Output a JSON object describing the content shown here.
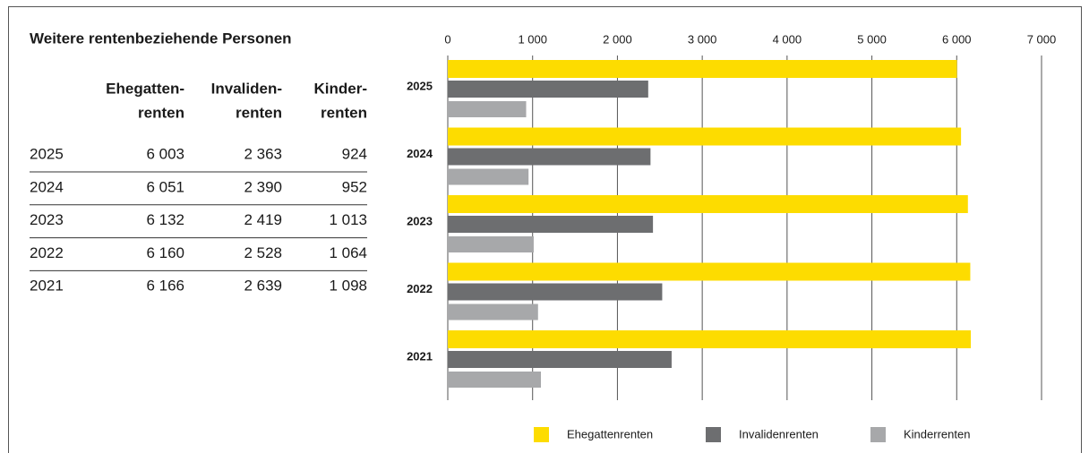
{
  "table": {
    "title": "Weitere rentenbeziehende Personen",
    "header": [
      [
        "Ehegatten-",
        "renten"
      ],
      [
        "Invaliden-",
        "renten"
      ],
      [
        "Kinder-",
        "renten"
      ]
    ],
    "rows": [
      [
        "2025",
        "6 003",
        "2 363",
        "924"
      ],
      [
        "2024",
        "6 051",
        "2 390",
        "952"
      ],
      [
        "2023",
        "6 132",
        "2 419",
        "1 013"
      ],
      [
        "2022",
        "6 160",
        "2 528",
        "1 064"
      ],
      [
        "2021",
        "6 166",
        "2 639",
        "1 098"
      ]
    ]
  },
  "chart_data": {
    "type": "barh",
    "categories": [
      "2025",
      "2024",
      "2023",
      "2022",
      "2021"
    ],
    "series": [
      {
        "name": "Ehegattenrenten",
        "color": "#fddc00",
        "values": [
          6003,
          6051,
          6132,
          6160,
          6166
        ]
      },
      {
        "name": "Invalidenrenten",
        "color": "#6d6e70",
        "values": [
          2363,
          2390,
          2419,
          2528,
          2639
        ]
      },
      {
        "name": "Kinderrenten",
        "color": "#a7a8aa",
        "values": [
          924,
          952,
          1013,
          1064,
          1098
        ]
      }
    ],
    "xlim": [
      0,
      7000
    ],
    "xticks": [
      0,
      {
        "value": 1000,
        "label": "1 000"
      },
      {
        "value": 2000,
        "label": "2 000"
      },
      {
        "value": 3000,
        "label": "3 000"
      },
      {
        "value": 4000,
        "label": "4 000"
      },
      {
        "value": 5000,
        "label": "5 000"
      },
      {
        "value": 6000,
        "label": "6 000"
      },
      {
        "value": 7000,
        "label": "7 000"
      }
    ],
    "grid": true,
    "legend": "bottom"
  }
}
